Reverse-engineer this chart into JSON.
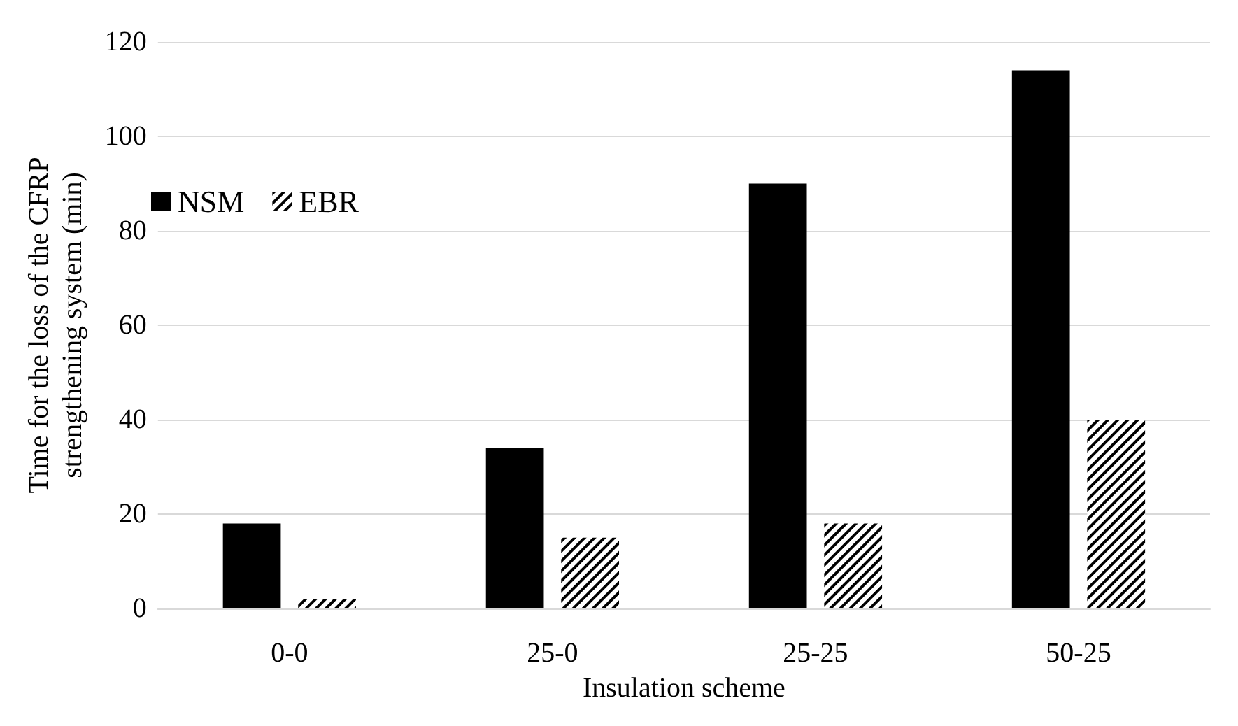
{
  "chart_data": {
    "type": "bar",
    "xlabel": "Insulation scheme",
    "ylabel": "Time for the loss of the CFRP\nstrengthening system (min)",
    "categories": [
      "0-0",
      "25-0",
      "25-25",
      "50-25"
    ],
    "series": [
      {
        "name": "NSM",
        "color": "#000000",
        "values": [
          18,
          34,
          90,
          114
        ]
      },
      {
        "name": "EBR",
        "color": "#000000",
        "values": [
          2,
          15,
          18,
          40
        ]
      }
    ],
    "ylim": [
      0,
      120
    ],
    "yticks": [
      0,
      20,
      40,
      60,
      80,
      100,
      120
    ],
    "grid": "y",
    "legend": "top left"
  }
}
